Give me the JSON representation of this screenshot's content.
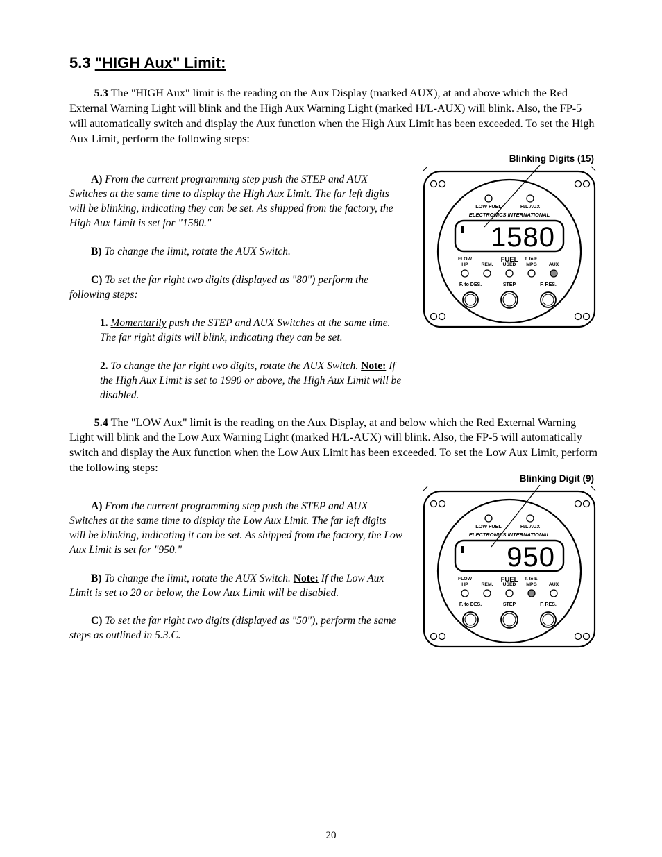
{
  "title_prefix": "5.3 ",
  "title_main": "\"HIGH Aux\" Limit:",
  "para1_lead": "5.3",
  "para1": "  The \"HIGH Aux\" limit is the reading on the Aux Display (marked AUX), at and above which the Red External Warning Light will blink and the High Aux Warning Light (marked H/L-AUX) will blink. Also, the FP-5 will automatically switch and display the Aux function when the High Aux Limit has been exceeded. To set the High Aux Limit, perform the following steps:",
  "stepA_lead": "A)",
  "stepA": "  From the current programming step push the STEP and AUX Switches at the same time to display the High Aux Limit. The far left digits will be blinking, indicating they can be set. As shipped from the factory, the High Aux Limit is set for \"1580.\"",
  "stepB_lead": "B)",
  "stepB": "  To change the limit, rotate the AUX Switch.",
  "stepC_head_lead": "C)",
  "stepC_head": "  To set the far right two digits (displayed as \"80\") perform the following steps:",
  "stepC1_lead": "1. ",
  "stepC1_a": "Momentarily",
  "stepC1_b": " push the STEP and AUX Switches at the same time. The far right digits will blink, indicating they can be set.",
  "stepC2_lead": "2. ",
  "stepC2": "To change the far right two digits, rotate the AUX Switch. ",
  "stepC2_bold": "Note:",
  "stepC2_rest": " If the High Aux Limit is set to 1990 or above, the High Aux Limit will be disabled.",
  "para_low_lead": "5.4",
  "para_low": "  The \"LOW Aux\" limit is the reading on the Aux Display, at and below which the Red External Warning Light will blink and the Low Aux Warning Light (marked H/L-AUX) will blink. Also, the FP-5 will automatically switch and display the Aux function when the Low Aux Limit has been exceeded. To set the Low Aux Limit, perform the following steps:",
  "stepA2_lead": "A)",
  "stepA2": "  From the current programming step push the STEP and AUX Switches at the same time to display the Low Aux Limit. The far left digits will be blinking, indicating it can be set. As shipped from the factory, the Low Aux Limit is set for \"950.\"",
  "stepB2_lead": "B)",
  "stepB2": "  To change the limit, rotate the AUX Switch. ",
  "stepB2_bold": "Note:",
  "stepB2_rest": " If the Low Aux Limit is set to 20 or below, the Low Aux Limit will be disabled.",
  "stepC2head_lead": "C)",
  "stepC2head": "  To set the far right two digits (displayed as \"50\"), perform the same steps as outlined in 5.3.C.",
  "page_number": "20",
  "gauge1": {
    "blink_label": "Blinking Digits (15)",
    "value": "1580",
    "top_left": "LOW FUEL",
    "top_right": "H/L  AUX",
    "brand": "ELECTRONICS   INTERNATIONAL",
    "mid_center": "FUEL",
    "mid_labels": [
      "FLOW",
      "HP",
      "REM.",
      "USED",
      "T. to E.",
      "MPG",
      "AUX"
    ],
    "bottom_labels": [
      "F. to DES.",
      "STEP",
      "F. RES."
    ],
    "lit_led": 4,
    "pointer_to": "left"
  },
  "gauge2": {
    "blink_label": "Blinking Digit (9)",
    "value": "950",
    "top_left": "LOW FUEL",
    "top_right": "H/L  AUX",
    "brand": "ELECTRONICS   INTERNATIONAL",
    "mid_center": "FUEL",
    "mid_labels": [
      "FLOW",
      "HP",
      "REM.",
      "USED",
      "T. to E.",
      "MPG",
      "AUX"
    ],
    "bottom_labels": [
      "F. to DES.",
      "STEP",
      "F. RES."
    ],
    "lit_led": 3,
    "pointer_to": "left"
  }
}
